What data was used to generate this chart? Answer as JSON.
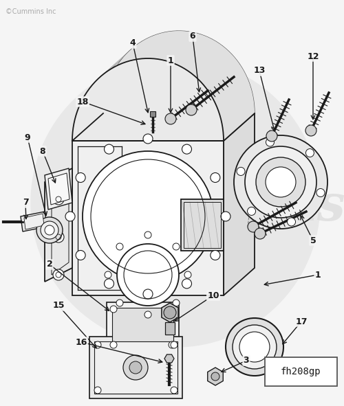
{
  "figsize": [
    5.0,
    5.91
  ],
  "dpi": 100,
  "bg_color": "#f5f5f5",
  "diagram_code": "fh208gp",
  "colors": {
    "line": "#1a1a1a",
    "bg_circle": "#e8e8e8",
    "housing_face": "#f2f2f2",
    "housing_side": "#e0e0e0",
    "housing_dark": "#d5d5d5",
    "white_fill": "#ffffff",
    "watermark_text": "#d8d8d8",
    "copyright": "#aaaaaa"
  },
  "copyright_text": "©Cummins Inc"
}
